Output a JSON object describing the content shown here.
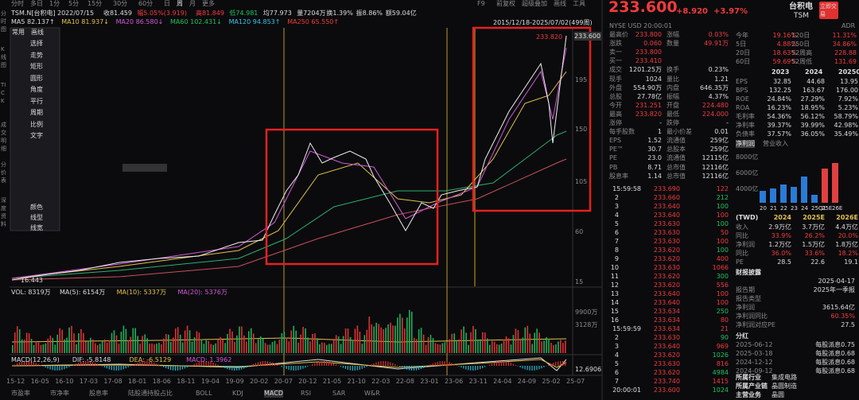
{
  "nav_tabs": [
    "分时",
    "多日",
    "1分",
    "5分",
    "15分",
    "30分",
    "60分",
    "日",
    "周",
    "月",
    "更多"
  ],
  "tools": [
    "F9",
    "前复权",
    "超级叠加",
    "画线",
    "工具"
  ],
  "side_tabs": [
    "分时图",
    "K线图",
    "TICK",
    "成交明细",
    "分价表",
    "深度资料"
  ],
  "info_line": [
    "TSM.N[台积电]",
    "2022/07/15",
    "收81.459",
    "幅5.05%(3.919)",
    "高81.849",
    "低74.981",
    "均77.973",
    "量7204万",
    "换1.39%",
    "振8.86%",
    "额59.04亿"
  ],
  "ma_line": [
    "MA5 82.137↑",
    "MA10 81.937↓",
    "MA20 86.580↓",
    "MA60 102.431↓",
    "MA120 94.853↑",
    "MA250 65.550↑"
  ],
  "draw_menu": {
    "tabs": [
      "常用",
      "画线"
    ],
    "items": [
      "选择",
      "走势",
      "矩形",
      "圆形",
      "角度",
      "平行",
      "周期",
      "比例",
      "文字"
    ],
    "bottom": [
      "颜色",
      "线型",
      "线宽"
    ]
  },
  "chart": {
    "range": "2015/12/18-2025/07/02(499周)",
    "high": "233.820",
    "low": "16.443",
    "price_tag": "233.600",
    "axis_labels": [
      "195",
      "150",
      "105",
      "60",
      "15"
    ],
    "vol_header": [
      "VOL: 8319万",
      "MA(5): 6154万",
      "MA(10): 5337万",
      "MA(20): 5376万"
    ],
    "vol_axis": [
      "9900万",
      "3128万"
    ],
    "macd_header": [
      "MACD(12,26,9)",
      "DIF: -5.8148",
      "DEA: -6.5129",
      "MACD: 1.3962"
    ],
    "macd_axis": "12.6906",
    "x_labels": [
      "15-12",
      "16-05",
      "16-10",
      "17-03",
      "17-08",
      "18-01",
      "18-06",
      "18-11",
      "19-04",
      "19-09",
      "20-02",
      "20-07",
      "20-12",
      "21-05",
      "21-10",
      "22-03",
      "22-08",
      "23-01",
      "23-06",
      "23-11",
      "24-04",
      "24-09",
      "25-02",
      "25-07"
    ]
  },
  "bottom_tabs": [
    "市盈率",
    "市净率",
    "股息率",
    "陆股通持股占比",
    "BOLL",
    "KDJ",
    "MACD",
    "RSI",
    "SAR",
    "W&R"
  ],
  "header": {
    "price": "233.600",
    "change": "+8.920",
    "pct": "+3.97%",
    "name": "台积电",
    "ticker": "TSM",
    "trade": "立即交易",
    "exchange": "NYSE USD 20:00:01",
    "adr": "ADR"
  },
  "quote": [
    [
      "最高价",
      "233.800",
      "涨幅",
      "0.03%"
    ],
    [
      "涨跌",
      "0.060",
      "数量",
      "49.91万"
    ],
    [
      "卖一",
      "233.800"
    ],
    [
      "买一",
      "233.410"
    ],
    [
      "成交",
      "1201.25万",
      "换手",
      "0.23%"
    ],
    [
      "现手",
      "1024",
      "量比",
      "1.21"
    ],
    [
      "外盘",
      "554.90万",
      "内盘",
      "646.35万"
    ],
    [
      "总股",
      "27.78亿",
      "振幅",
      "4.37%"
    ],
    [
      "今开",
      "231.251",
      "开盘",
      "224.480"
    ],
    [
      "最高",
      "233.820",
      "最低",
      "224.000"
    ],
    [
      "涨停",
      "-",
      "跌停",
      "-"
    ],
    [
      "每手股数",
      "1",
      "最小价差",
      "0.01"
    ],
    [
      "EPS",
      "1.52",
      "流通值",
      "259亿"
    ],
    [
      "PE™",
      "30.7",
      "总股本",
      "259亿"
    ],
    [
      "PE",
      "23.0",
      "流通值",
      "12115亿"
    ],
    [
      "PB",
      "8.71",
      "总市值",
      "12116亿"
    ],
    [
      "股息率",
      "1.14",
      "总市值",
      "12116亿"
    ]
  ],
  "trades": [
    [
      "15:59:58",
      "233.690",
      "122"
    ],
    [
      "2",
      "233.660",
      "212"
    ],
    [
      "3",
      "233.640",
      "100"
    ],
    [
      "4",
      "233.640",
      "100"
    ],
    [
      "5",
      "233.630",
      "100"
    ],
    [
      "6",
      "233.630",
      "50"
    ],
    [
      "7",
      "233.630",
      "100"
    ],
    [
      "8",
      "233.620",
      "100"
    ],
    [
      "9",
      "233.620",
      "400"
    ],
    [
      "10",
      "233.630",
      "1066"
    ],
    [
      "11",
      "233.620",
      "300"
    ],
    [
      "12",
      "233.620",
      "556"
    ],
    [
      "13",
      "233.640",
      "100"
    ],
    [
      "14",
      "233.640",
      "100"
    ],
    [
      "15",
      "233.634",
      "250"
    ],
    [
      "16",
      "233.634",
      "80"
    ],
    [
      "15:59:59",
      "233.634",
      "21"
    ],
    [
      "2",
      "233.630",
      "90"
    ],
    [
      "3",
      "233.640",
      "969"
    ],
    [
      "4",
      "233.620",
      "1026"
    ],
    [
      "5",
      "233.630",
      "816"
    ],
    [
      "6",
      "233.620",
      "4984"
    ],
    [
      "7",
      "233.740",
      "1415"
    ],
    [
      "20:00:01",
      "233.600",
      "1024"
    ]
  ],
  "returns": [
    [
      "今年",
      "19.16%",
      "120日",
      "11.31%"
    ],
    [
      "5日",
      "4.88%",
      "250日",
      "34.86%"
    ],
    [
      "20日",
      "18.63%",
      "52周高",
      "228.88"
    ],
    [
      "60日",
      "59.69%",
      "52周低",
      "131.69"
    ]
  ],
  "fin_header": [
    "2023",
    "2024",
    "2025Q1"
  ],
  "fin": [
    [
      "EPS",
      "32.85",
      "44.68",
      "13.95"
    ],
    [
      "BPS",
      "132.25",
      "163.67",
      "176.00"
    ],
    [
      "ROE",
      "24.84%",
      "27.29%",
      "7.92%"
    ],
    [
      "ROA",
      "16.23%",
      "18.95%",
      "5.23%"
    ],
    [
      "毛利率",
      "54.36%",
      "56.12%",
      "58.79%"
    ],
    [
      "净利率",
      "39.37%",
      "39.99%",
      "42.98%"
    ],
    [
      "负债率",
      "37.57%",
      "36.05%",
      "35.49%"
    ]
  ],
  "bar_tabs": [
    "净利润",
    "营业收入"
  ],
  "bar_axis": [
    "8000亿",
    "6000亿",
    "4000亿"
  ],
  "bar_x": [
    "20",
    "21",
    "22",
    "23",
    "24",
    "25Q1",
    "25E",
    "26E"
  ],
  "forecast_header": [
    "(TWD)",
    "2024",
    "2025E",
    "2026E"
  ],
  "forecast": [
    [
      "收入",
      "2.9万亿",
      "3.7万亿",
      "4.4万亿"
    ],
    [
      "同比",
      "33.9%",
      "26.2%",
      "20.0%"
    ],
    [
      "净利润",
      "1.2万亿",
      "1.5万亿",
      "1.8万亿"
    ],
    [
      "同比",
      "36.0%",
      "33.6%",
      "18.2%"
    ],
    [
      "PE",
      "28.5",
      "22.6",
      "19.1"
    ]
  ],
  "report_title": "财报披露",
  "report": [
    [
      "2025-04-17"
    ],
    [
      "报告期",
      "2025年一季报"
    ],
    [
      "报告类型"
    ],
    [
      "净利润",
      "3615.64亿"
    ],
    [
      "净利润同比",
      "60.35%"
    ],
    [
      "净利润对应PE",
      "27.5"
    ]
  ],
  "dividend_title": "分红",
  "dividends": [
    [
      "2025-06-12",
      "每股派息0.75"
    ],
    [
      "2025-03-18",
      "每股派息0.68"
    ],
    [
      "2024-12-12",
      "每股派息0.68"
    ],
    [
      "2024-09-12",
      "每股派息0.68"
    ]
  ],
  "profile": [
    [
      "所属行业",
      "集成电路"
    ],
    [
      "所属产业链",
      "晶圆制造"
    ],
    [
      "主营业务",
      "晶圆"
    ]
  ]
}
